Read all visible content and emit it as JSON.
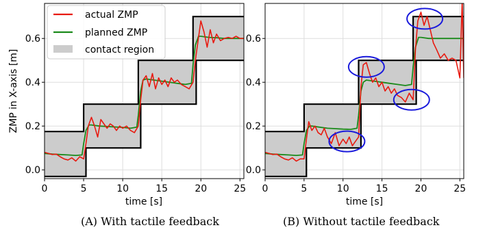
{
  "colors": {
    "actual": "#e8190f",
    "planned": "#1a8a1a",
    "contact_fill": "#cccccc",
    "contact_edge": "#000000",
    "highlight": "#1a1adc",
    "grid": "#dddddd"
  },
  "legend": {
    "actual": "actual ZMP",
    "planned": "planned ZMP",
    "contact": "contact region",
    "placement": "upper-left (panel A)"
  },
  "captions": [
    "(A) With tactile feedback",
    "(B) Without tactile feedback"
  ],
  "chart_data": [
    {
      "type": "line",
      "panel": "A",
      "xlabel": "time [s]",
      "ylabel": "ZMP in X-axis [m]",
      "xlim": [
        0,
        25.5
      ],
      "ylim": [
        -0.04,
        0.76
      ],
      "xticks": [
        "0",
        "5",
        "10",
        "15",
        "20",
        "25"
      ],
      "yticks": [
        "0.0",
        "0.2",
        "0.4",
        "0.6"
      ],
      "grid": true,
      "series": [
        {
          "name": "contact region",
          "kind": "band",
          "x": [
            0,
            5,
            5,
            5.3,
            5.3,
            12,
            12,
            12.3,
            12.3,
            19,
            19,
            19.4,
            19.4,
            25.5
          ],
          "upper": [
            0.175,
            0.175,
            0.3,
            0.3,
            0.3,
            0.3,
            0.5,
            0.5,
            0.5,
            0.5,
            0.7,
            0.7,
            0.7,
            0.7
          ],
          "lower": [
            -0.03,
            -0.03,
            -0.03,
            -0.03,
            0.1,
            0.1,
            0.1,
            0.1,
            0.3,
            0.3,
            0.3,
            0.3,
            0.5,
            0.5
          ]
        },
        {
          "name": "planned ZMP",
          "x": [
            0,
            1,
            2,
            3,
            4,
            4.8,
            5.0,
            5.3,
            5.7,
            6,
            7,
            8,
            9,
            10,
            11,
            11.8,
            12.0,
            12.3,
            12.6,
            13,
            14,
            15,
            16,
            17,
            18,
            18.8,
            19.0,
            19.3,
            19.7,
            20,
            21,
            22,
            23,
            24,
            25,
            25.5
          ],
          "y": [
            0.075,
            0.072,
            0.07,
            0.068,
            0.066,
            0.068,
            0.12,
            0.18,
            0.205,
            0.205,
            0.2,
            0.198,
            0.196,
            0.194,
            0.19,
            0.195,
            0.25,
            0.36,
            0.41,
            0.415,
            0.41,
            0.405,
            0.4,
            0.395,
            0.39,
            0.395,
            0.48,
            0.57,
            0.61,
            0.61,
            0.605,
            0.603,
            0.6,
            0.6,
            0.6,
            0.6
          ]
        },
        {
          "name": "actual ZMP",
          "x": [
            0,
            0.5,
            1,
            1.5,
            2,
            2.5,
            3,
            3.5,
            4,
            4.5,
            5.0,
            5.3,
            5.6,
            6.0,
            6.4,
            6.8,
            7.2,
            7.6,
            8.0,
            8.4,
            8.8,
            9.2,
            9.6,
            10.0,
            10.5,
            11.0,
            11.5,
            12.0,
            12.3,
            12.6,
            13.0,
            13.4,
            13.8,
            14.2,
            14.6,
            15.0,
            15.4,
            15.8,
            16.2,
            16.6,
            17.0,
            17.5,
            18.0,
            18.5,
            19.0,
            19.3,
            19.6,
            20.0,
            20.4,
            20.8,
            21.2,
            21.6,
            22.0,
            22.5,
            23.0,
            23.5,
            24.0,
            24.5,
            25.0,
            25.5
          ],
          "y": [
            0.08,
            0.075,
            0.07,
            0.072,
            0.06,
            0.05,
            0.045,
            0.055,
            0.04,
            0.06,
            0.05,
            0.12,
            0.2,
            0.24,
            0.2,
            0.15,
            0.23,
            0.21,
            0.19,
            0.21,
            0.2,
            0.18,
            0.2,
            0.19,
            0.2,
            0.18,
            0.17,
            0.2,
            0.32,
            0.41,
            0.43,
            0.38,
            0.44,
            0.37,
            0.42,
            0.39,
            0.41,
            0.38,
            0.42,
            0.4,
            0.41,
            0.39,
            0.38,
            0.37,
            0.4,
            0.5,
            0.58,
            0.68,
            0.63,
            0.56,
            0.64,
            0.58,
            0.62,
            0.59,
            0.6,
            0.605,
            0.6,
            0.61,
            0.6,
            0.6
          ]
        }
      ]
    },
    {
      "type": "line",
      "panel": "B",
      "xlabel": "time [s]",
      "ylabel": "",
      "xlim": [
        0,
        25.5
      ],
      "ylim": [
        -0.04,
        0.76
      ],
      "xticks": [
        "0",
        "5",
        "10",
        "15",
        "20",
        "25"
      ],
      "yticks": [
        "0.0",
        "0.2",
        "0.4",
        "0.6"
      ],
      "grid": true,
      "highlight_ellipses_at": [
        [
          10.5,
          0.13
        ],
        [
          13.0,
          0.47
        ],
        [
          18.8,
          0.32
        ],
        [
          20.5,
          0.69
        ]
      ],
      "series": [
        {
          "name": "contact region",
          "kind": "band",
          "x": [
            0,
            5,
            5,
            5.3,
            5.3,
            12,
            12,
            12.3,
            12.3,
            19,
            19,
            19.4,
            19.4,
            25.5
          ],
          "upper": [
            0.175,
            0.175,
            0.3,
            0.3,
            0.3,
            0.3,
            0.5,
            0.5,
            0.5,
            0.5,
            0.7,
            0.7,
            0.7,
            0.7
          ],
          "lower": [
            -0.03,
            -0.03,
            -0.03,
            -0.03,
            0.1,
            0.1,
            0.1,
            0.1,
            0.3,
            0.3,
            0.3,
            0.3,
            0.5,
            0.5
          ]
        },
        {
          "name": "planned ZMP",
          "x": [
            0,
            1,
            2,
            3,
            4,
            4.8,
            5.0,
            5.3,
            5.7,
            6,
            7,
            8,
            9,
            10,
            11,
            11.8,
            12.0,
            12.3,
            12.6,
            13,
            14,
            15,
            16,
            17,
            18,
            18.8,
            19.0,
            19.3,
            19.7,
            20,
            21,
            22,
            23,
            24,
            25,
            25.5
          ],
          "y": [
            0.075,
            0.072,
            0.07,
            0.068,
            0.066,
            0.068,
            0.12,
            0.18,
            0.2,
            0.2,
            0.195,
            0.19,
            0.188,
            0.186,
            0.185,
            0.19,
            0.25,
            0.36,
            0.4,
            0.41,
            0.405,
            0.4,
            0.395,
            0.39,
            0.385,
            0.39,
            0.47,
            0.56,
            0.605,
            0.605,
            0.6,
            0.6,
            0.6,
            0.6,
            0.6,
            0.6
          ]
        },
        {
          "name": "actual ZMP",
          "x": [
            0,
            0.5,
            1,
            1.5,
            2,
            2.5,
            3,
            3.5,
            4,
            4.5,
            5.0,
            5.3,
            5.6,
            6.0,
            6.4,
            6.8,
            7.2,
            7.6,
            8.0,
            8.5,
            9.0,
            9.5,
            10.0,
            10.4,
            10.8,
            11.2,
            11.6,
            12.0,
            12.3,
            12.6,
            13.0,
            13.4,
            13.8,
            14.2,
            14.6,
            15.0,
            15.4,
            15.8,
            16.2,
            16.6,
            17.0,
            17.5,
            18.0,
            18.5,
            19.0,
            19.3,
            19.6,
            20.0,
            20.4,
            20.8,
            21.2,
            21.6,
            22.0,
            22.5,
            23.0,
            23.5,
            24.0,
            24.5,
            25.0,
            25.3,
            25.5
          ],
          "y": [
            0.08,
            0.075,
            0.07,
            0.072,
            0.06,
            0.05,
            0.045,
            0.055,
            0.04,
            0.05,
            0.05,
            0.14,
            0.22,
            0.18,
            0.2,
            0.17,
            0.16,
            0.19,
            0.15,
            0.12,
            0.17,
            0.11,
            0.14,
            0.12,
            0.15,
            0.11,
            0.13,
            0.15,
            0.38,
            0.48,
            0.49,
            0.44,
            0.4,
            0.42,
            0.38,
            0.4,
            0.36,
            0.38,
            0.35,
            0.37,
            0.34,
            0.33,
            0.31,
            0.35,
            0.32,
            0.55,
            0.68,
            0.72,
            0.66,
            0.7,
            0.64,
            0.58,
            0.55,
            0.51,
            0.53,
            0.5,
            0.51,
            0.5,
            0.42,
            0.78,
            0.42
          ]
        }
      ]
    }
  ]
}
